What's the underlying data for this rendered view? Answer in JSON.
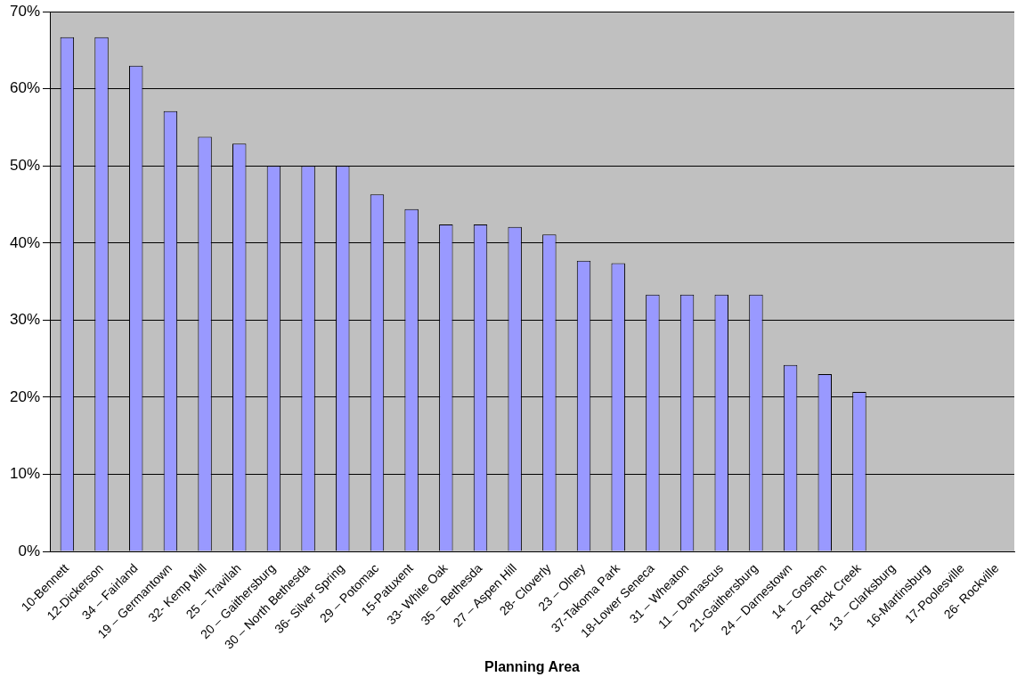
{
  "chart_data": {
    "type": "bar",
    "xlabel": "Planning Area",
    "categories": [
      "10-Bennett",
      "12-Dickerson",
      "34 – Fairland",
      "19 – Germantown",
      "32- Kemp Mill",
      "25 – Travilah",
      "20 – Gaithersburg",
      "30 – North Bethesda",
      "36- Silver Spring",
      "29 – Potomac",
      "15-Patuxent",
      "33- White Oak",
      "35 – Bethesda",
      "27 – Aspen Hill",
      "28- Cloverly",
      "23 – Olney",
      "37-Takoma Park",
      "18-Lower Seneca",
      "31 – Wheaton",
      "11 – Damascus",
      "21-Gaithersburg",
      "24 – Darnestown",
      "14 – Goshen",
      "22 – Rock Creek",
      "13 – Clarksburg",
      "16-Martinsburg",
      "17-Poolesville",
      "26- Rockville"
    ],
    "values": [
      66.7,
      66.7,
      63,
      57.1,
      53.8,
      52.9,
      50,
      50,
      50,
      46.3,
      44.4,
      42.4,
      42.4,
      42.1,
      41.1,
      37.7,
      37.4,
      33.3,
      33.3,
      33.3,
      33.3,
      24.2,
      23,
      20.7,
      0,
      0,
      0,
      0
    ],
    "color": "#9999ff",
    "ylim": [
      0,
      70
    ],
    "yticks": [
      {
        "value": 0,
        "label": "0%"
      },
      {
        "value": 10,
        "label": "10%"
      },
      {
        "value": 20,
        "label": "20%"
      },
      {
        "value": 30,
        "label": "30%"
      },
      {
        "value": 40,
        "label": "40%"
      },
      {
        "value": 50,
        "label": "50%"
      },
      {
        "value": 60,
        "label": "60%"
      },
      {
        "value": 70,
        "label": "70%"
      }
    ],
    "grid": "y",
    "legend": false
  }
}
